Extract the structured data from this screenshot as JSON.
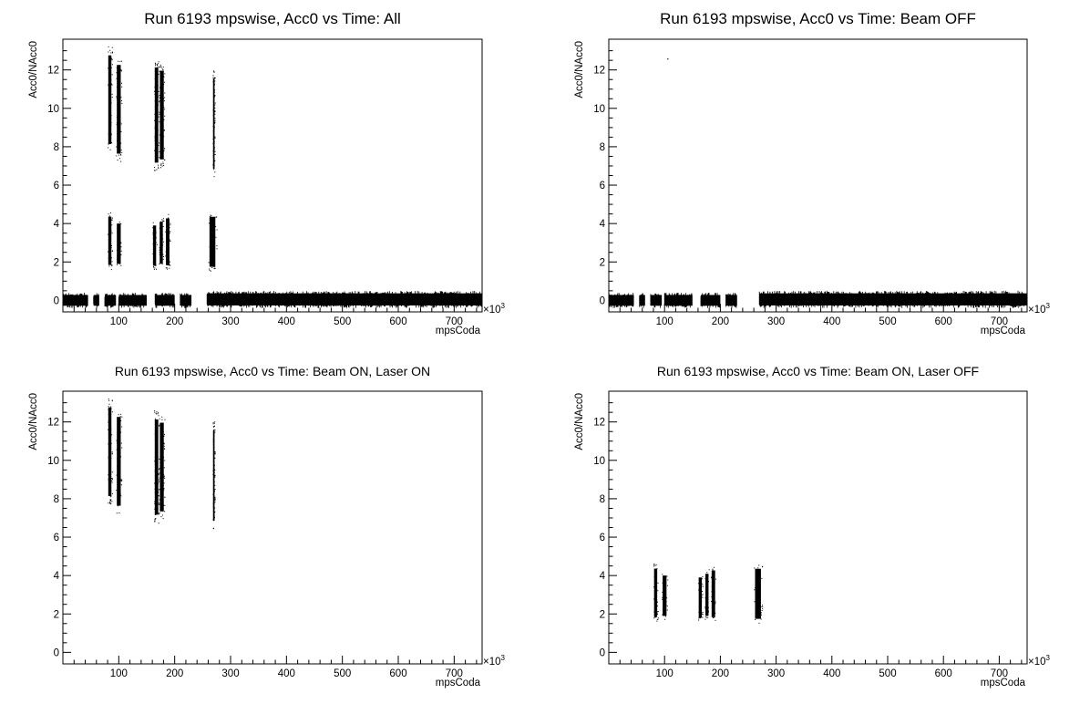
{
  "chart_data": [
    {
      "type": "scatter",
      "title": "Run 6193 mpswise, Acc0 vs Time: All",
      "xlabel": "mpsCoda",
      "ylabel": "Acc0/NAcc0",
      "x_multiplier": "×10³",
      "xlim": [
        0,
        750
      ],
      "ylim": [
        -0.6,
        13.6
      ],
      "x_ticks": [
        100,
        200,
        300,
        400,
        500,
        600,
        700
      ],
      "y_ticks": [
        0,
        2,
        4,
        6,
        8,
        10,
        12
      ],
      "series": [
        {
          "values": [
            {
              "x_range": [
                0,
                45
              ],
              "y_range": [
                -0.4,
                0.4
              ]
            },
            {
              "x_range": [
                55,
                65
              ],
              "y_range": [
                -0.4,
                0.4
              ]
            },
            {
              "x_range": [
                75,
                95
              ],
              "y_range": [
                -0.4,
                0.4
              ]
            },
            {
              "x_range": [
                100,
                150
              ],
              "y_range": [
                -0.4,
                0.4
              ]
            },
            {
              "x_range": [
                165,
                200
              ],
              "y_range": [
                -0.4,
                0.4
              ]
            },
            {
              "x_range": [
                210,
                230
              ],
              "y_range": [
                -0.4,
                0.4
              ]
            },
            {
              "x_range": [
                258,
                750
              ],
              "y_range": [
                -0.4,
                0.5
              ]
            },
            {
              "x_range": [
                80,
                88
              ],
              "y_range": [
                1.6,
                4.6
              ]
            },
            {
              "x_range": [
                95,
                105
              ],
              "y_range": [
                1.7,
                4.2
              ]
            },
            {
              "x_range": [
                160,
                168
              ],
              "y_range": [
                1.6,
                4.1
              ]
            },
            {
              "x_range": [
                172,
                180
              ],
              "y_range": [
                1.7,
                4.3
              ]
            },
            {
              "x_range": [
                183,
                192
              ],
              "y_range": [
                1.6,
                4.5
              ]
            },
            {
              "x_range": [
                260,
                275
              ],
              "y_range": [
                1.5,
                4.6
              ]
            },
            {
              "x_range": [
                80,
                88
              ],
              "y_range": [
                7.7,
                13.2
              ]
            },
            {
              "x_range": [
                95,
                105
              ],
              "y_range": [
                7.2,
                12.7
              ]
            },
            {
              "x_range": [
                163,
                172
              ],
              "y_range": [
                6.7,
                12.6
              ]
            },
            {
              "x_range": [
                172,
                182
              ],
              "y_range": [
                6.9,
                12.4
              ]
            },
            {
              "x_range": [
                268,
                272
              ],
              "y_range": [
                6.4,
                12.0
              ]
            }
          ]
        }
      ]
    },
    {
      "type": "scatter",
      "title": "Run 6193 mpswise, Acc0 vs Time: Beam OFF",
      "xlabel": "mpsCoda",
      "ylabel": "Acc0/NAcc0",
      "x_multiplier": "×10³",
      "xlim": [
        0,
        750
      ],
      "ylim": [
        -0.6,
        13.6
      ],
      "x_ticks": [
        100,
        200,
        300,
        400,
        500,
        600,
        700
      ],
      "y_ticks": [
        0,
        2,
        4,
        6,
        8,
        10,
        12
      ],
      "series": [
        {
          "values": [
            {
              "x_range": [
                0,
                45
              ],
              "y_range": [
                -0.4,
                0.4
              ]
            },
            {
              "x_range": [
                55,
                65
              ],
              "y_range": [
                -0.4,
                0.4
              ]
            },
            {
              "x_range": [
                75,
                95
              ],
              "y_range": [
                -0.4,
                0.4
              ]
            },
            {
              "x_range": [
                100,
                150
              ],
              "y_range": [
                -0.4,
                0.4
              ]
            },
            {
              "x_range": [
                165,
                200
              ],
              "y_range": [
                -0.4,
                0.4
              ]
            },
            {
              "x_range": [
                210,
                230
              ],
              "y_range": [
                -0.4,
                0.4
              ]
            },
            {
              "x_range": [
                270,
                750
              ],
              "y_range": [
                -0.4,
                0.5
              ]
            },
            {
              "x": 105,
              "y": 12.6
            }
          ]
        }
      ]
    },
    {
      "type": "scatter",
      "title": "Run 6193 mpswise, Acc0 vs Time: Beam ON, Laser ON",
      "xlabel": "mpsCoda",
      "ylabel": "Acc0/NAcc0",
      "x_multiplier": "×10³",
      "xlim": [
        0,
        750
      ],
      "ylim": [
        -0.6,
        13.6
      ],
      "x_ticks": [
        100,
        200,
        300,
        400,
        500,
        600,
        700
      ],
      "y_ticks": [
        0,
        2,
        4,
        6,
        8,
        10,
        12
      ],
      "series": [
        {
          "values": [
            {
              "x_range": [
                80,
                88
              ],
              "y_range": [
                7.7,
                13.2
              ]
            },
            {
              "x_range": [
                95,
                105
              ],
              "y_range": [
                7.2,
                12.7
              ]
            },
            {
              "x_range": [
                163,
                172
              ],
              "y_range": [
                6.7,
                12.6
              ]
            },
            {
              "x_range": [
                172,
                182
              ],
              "y_range": [
                6.9,
                12.4
              ]
            },
            {
              "x_range": [
                268,
                272
              ],
              "y_range": [
                6.4,
                12.0
              ]
            }
          ]
        }
      ]
    },
    {
      "type": "scatter",
      "title": "Run 6193 mpswise, Acc0 vs Time: Beam ON, Laser OFF",
      "xlabel": "mpsCoda",
      "ylabel": "Acc0/NAcc0",
      "x_multiplier": "×10³",
      "xlim": [
        0,
        750
      ],
      "ylim": [
        -0.6,
        13.6
      ],
      "x_ticks": [
        100,
        200,
        300,
        400,
        500,
        600,
        700
      ],
      "y_ticks": [
        0,
        2,
        4,
        6,
        8,
        10,
        12
      ],
      "series": [
        {
          "values": [
            {
              "x_range": [
                80,
                88
              ],
              "y_range": [
                1.6,
                4.6
              ]
            },
            {
              "x_range": [
                95,
                105
              ],
              "y_range": [
                1.7,
                4.2
              ]
            },
            {
              "x_range": [
                160,
                168
              ],
              "y_range": [
                1.6,
                4.1
              ]
            },
            {
              "x_range": [
                172,
                180
              ],
              "y_range": [
                1.7,
                4.3
              ]
            },
            {
              "x_range": [
                183,
                192
              ],
              "y_range": [
                1.6,
                4.5
              ]
            },
            {
              "x_range": [
                260,
                275
              ],
              "y_range": [
                1.5,
                4.6
              ]
            }
          ]
        }
      ]
    }
  ]
}
